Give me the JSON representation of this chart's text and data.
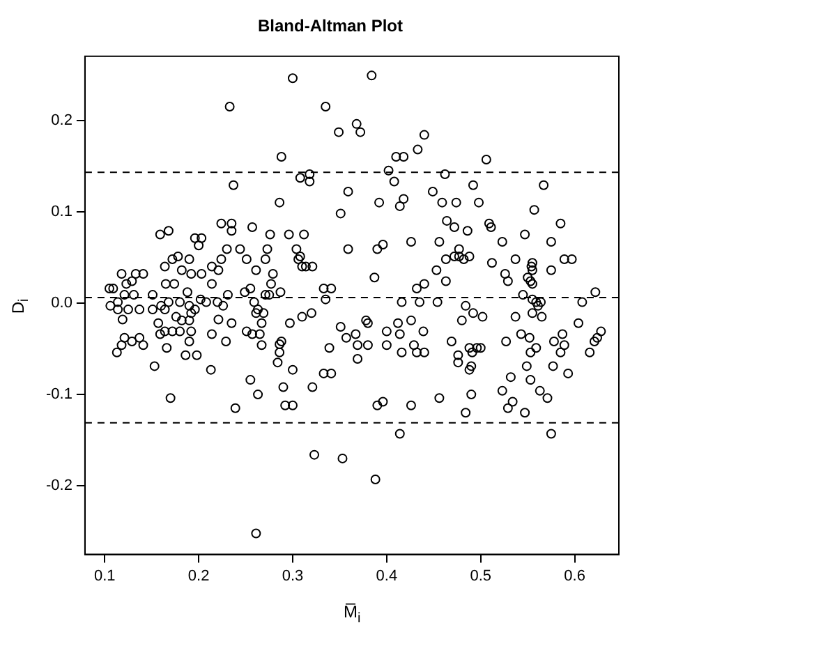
{
  "chart_data": {
    "type": "scatter",
    "title": "Bland-Altman Plot",
    "xlabel": "M̅$_{i}$",
    "ylabel": "D$_{i}$",
    "xlim": [
      0.079,
      0.647
    ],
    "ylim": [
      -0.275,
      0.27
    ],
    "xticks": [
      0.1,
      0.2,
      0.3,
      0.4,
      0.5,
      0.6
    ],
    "yticks": [
      {
        "value": -0.2,
        "label": "-0.2"
      },
      {
        "value": -0.1,
        "label": "-0.1"
      },
      {
        "value": 0,
        "label": "0.0"
      },
      0.1,
      0.2
    ],
    "grid": false,
    "legend": false,
    "marker": "circle",
    "ref_lines": [
      {
        "axis": "y",
        "value": 0.143,
        "color": "#000000",
        "line_style": "dashed"
      },
      {
        "axis": "y",
        "value": 0.006,
        "color": "#000000",
        "line_style": "dashed"
      },
      {
        "axis": "y",
        "value": -0.131,
        "color": "#000000",
        "line_style": "dashed"
      }
    ],
    "series": [
      {
        "color": "#000000",
        "x": [
          0.3,
          0.384,
          0.233,
          0.335,
          0.349,
          0.368,
          0.372,
          0.44,
          0.433,
          0.288,
          0.41,
          0.418,
          0.402,
          0.308,
          0.318,
          0.318,
          0.237,
          0.408,
          0.286,
          0.359,
          0.351,
          0.392,
          0.418,
          0.414,
          0.426,
          0.159,
          0.168,
          0.224,
          0.235,
          0.235,
          0.257,
          0.196,
          0.203,
          0.2,
          0.276,
          0.296,
          0.312,
          0.359,
          0.39,
          0.396,
          0.304,
          0.308,
          0.306,
          0.31,
          0.314,
          0.321,
          0.387,
          0.23,
          0.244,
          0.273,
          0.251,
          0.271,
          0.224,
          0.221,
          0.261,
          0.279,
          0.277,
          0.214,
          0.178,
          0.19,
          0.172,
          0.164,
          0.182,
          0.192,
          0.203,
          0.214,
          0.141,
          0.133,
          0.118,
          0.129,
          0.123,
          0.109,
          0.105,
          0.165,
          0.174,
          0.188,
          0.255,
          0.249,
          0.231,
          0.271,
          0.275,
          0.287,
          0.333,
          0.341,
          0.335,
          0.432,
          0.44,
          0.416,
          0.435,
          0.22,
          0.226,
          0.208,
          0.202,
          0.196,
          0.19,
          0.18,
          0.168,
          0.16,
          0.151,
          0.151,
          0.131,
          0.121,
          0.114,
          0.106,
          0.114,
          0.125,
          0.137,
          0.119,
          0.176,
          0.182,
          0.192,
          0.19,
          0.164,
          0.157,
          0.159,
          0.164,
          0.172,
          0.18,
          0.192,
          0.221,
          0.235,
          0.214,
          0.261,
          0.263,
          0.269,
          0.259,
          0.267,
          0.251,
          0.257,
          0.265,
          0.267,
          0.297,
          0.31,
          0.32,
          0.229,
          0.19,
          0.166,
          0.186,
          0.198,
          0.141,
          0.137,
          0.129,
          0.121,
          0.118,
          0.113,
          0.153,
          0.213,
          0.17,
          0.255,
          0.263,
          0.239,
          0.288,
          0.286,
          0.286,
          0.284,
          0.3,
          0.29,
          0.292,
          0.3,
          0.333,
          0.341,
          0.321,
          0.339,
          0.351,
          0.357,
          0.367,
          0.369,
          0.369,
          0.378,
          0.38,
          0.38,
          0.4,
          0.4,
          0.412,
          0.414,
          0.416,
          0.426,
          0.429,
          0.432,
          0.439,
          0.44,
          0.39,
          0.396,
          0.426,
          0.414,
          0.323,
          0.353,
          0.388,
          0.261,
          0.506,
          0.462,
          0.492,
          0.567,
          0.449,
          0.459,
          0.474,
          0.498,
          0.557,
          0.464,
          0.472,
          0.486,
          0.509,
          0.511,
          0.585,
          0.547,
          0.456,
          0.523,
          0.575,
          0.477,
          0.472,
          0.477,
          0.488,
          0.463,
          0.482,
          0.512,
          0.537,
          0.589,
          0.597,
          0.555,
          0.554,
          0.555,
          0.453,
          0.575,
          0.526,
          0.529,
          0.463,
          0.55,
          0.553,
          0.555,
          0.622,
          0.545,
          0.454,
          0.555,
          0.559,
          0.564,
          0.561,
          0.608,
          0.484,
          0.492,
          0.502,
          0.48,
          0.537,
          0.555,
          0.565,
          0.604,
          0.628,
          0.624,
          0.621,
          0.616,
          0.469,
          0.527,
          0.543,
          0.552,
          0.587,
          0.578,
          0.589,
          0.585,
          0.553,
          0.559,
          0.488,
          0.491,
          0.496,
          0.5,
          0.476,
          0.476,
          0.49,
          0.488,
          0.549,
          0.577,
          0.593,
          0.532,
          0.553,
          0.523,
          0.563,
          0.571,
          0.49,
          0.456,
          0.534,
          0.529,
          0.484,
          0.547,
          0.575
        ],
        "values": [
          0.246,
          0.249,
          0.215,
          0.215,
          0.187,
          0.196,
          0.187,
          0.184,
          0.168,
          0.16,
          0.16,
          0.16,
          0.145,
          0.137,
          0.141,
          0.133,
          0.129,
          0.133,
          0.11,
          0.122,
          0.098,
          0.11,
          0.114,
          0.106,
          0.067,
          0.075,
          0.079,
          0.087,
          0.087,
          0.079,
          0.083,
          0.071,
          0.071,
          0.063,
          0.075,
          0.075,
          0.075,
          0.059,
          0.059,
          0.064,
          0.059,
          0.051,
          0.048,
          0.04,
          0.04,
          0.04,
          0.028,
          0.059,
          0.059,
          0.059,
          0.048,
          0.048,
          0.048,
          0.036,
          0.036,
          0.032,
          0.021,
          0.021,
          0.051,
          0.048,
          0.048,
          0.04,
          0.036,
          0.032,
          0.032,
          0.04,
          0.032,
          0.032,
          0.032,
          0.024,
          0.021,
          0.016,
          0.016,
          0.021,
          0.021,
          0.012,
          0.016,
          0.012,
          0.009,
          0.009,
          0.009,
          0.012,
          0.016,
          0.016,
          0.004,
          0.016,
          0.021,
          0.001,
          0.001,
          0.001,
          -0.003,
          0.001,
          0.004,
          -0.007,
          -0.003,
          0.001,
          0.001,
          -0.003,
          -0.007,
          0.009,
          0.009,
          0.009,
          0.001,
          -0.003,
          -0.007,
          -0.007,
          -0.007,
          -0.018,
          -0.015,
          -0.019,
          -0.011,
          -0.019,
          -0.007,
          -0.022,
          -0.034,
          -0.031,
          -0.031,
          -0.031,
          -0.031,
          -0.018,
          -0.022,
          -0.034,
          -0.011,
          -0.007,
          -0.011,
          0.001,
          -0.022,
          -0.031,
          -0.034,
          -0.034,
          -0.046,
          -0.022,
          -0.015,
          -0.011,
          -0.042,
          -0.042,
          -0.049,
          -0.057,
          -0.057,
          -0.046,
          -0.038,
          -0.042,
          -0.038,
          -0.046,
          -0.054,
          -0.069,
          -0.073,
          -0.104,
          -0.084,
          -0.1,
          -0.115,
          -0.042,
          -0.045,
          -0.054,
          -0.065,
          -0.073,
          -0.092,
          -0.112,
          -0.112,
          -0.077,
          -0.077,
          -0.092,
          -0.049,
          -0.026,
          -0.038,
          -0.034,
          -0.046,
          -0.061,
          -0.019,
          -0.022,
          -0.046,
          -0.031,
          -0.046,
          -0.022,
          -0.034,
          -0.054,
          -0.019,
          -0.046,
          -0.054,
          -0.031,
          -0.054,
          -0.112,
          -0.108,
          -0.112,
          -0.143,
          -0.166,
          -0.17,
          -0.193,
          -0.252,
          0.157,
          0.141,
          0.129,
          0.129,
          0.122,
          0.11,
          0.11,
          0.11,
          0.102,
          0.09,
          0.083,
          0.079,
          0.087,
          0.083,
          0.087,
          0.075,
          0.067,
          0.067,
          0.067,
          0.059,
          0.051,
          0.051,
          0.051,
          0.048,
          0.048,
          0.044,
          0.048,
          0.048,
          0.048,
          0.044,
          0.04,
          0.036,
          0.036,
          0.036,
          0.032,
          0.024,
          0.024,
          0.028,
          0.024,
          0.021,
          0.012,
          0.009,
          0.001,
          0.004,
          0.001,
          0.001,
          -0.003,
          0.001,
          -0.003,
          -0.011,
          -0.015,
          -0.019,
          -0.015,
          -0.011,
          -0.015,
          -0.022,
          -0.031,
          -0.038,
          -0.042,
          -0.054,
          -0.042,
          -0.042,
          -0.034,
          -0.038,
          -0.034,
          -0.042,
          -0.046,
          -0.054,
          -0.054,
          -0.049,
          -0.049,
          -0.054,
          -0.049,
          -0.049,
          -0.057,
          -0.065,
          -0.069,
          -0.073,
          -0.069,
          -0.069,
          -0.077,
          -0.081,
          -0.084,
          -0.096,
          -0.096,
          -0.104,
          -0.1,
          -0.104,
          -0.108,
          -0.115,
          -0.12,
          -0.12,
          -0.143
        ]
      }
    ]
  }
}
